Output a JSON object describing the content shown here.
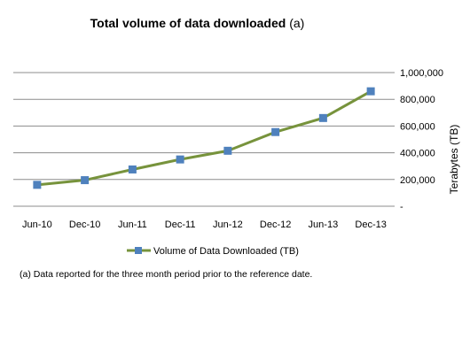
{
  "chart_data": {
    "type": "line",
    "title": "Total volume of data downloaded",
    "title_note": "(a)",
    "categories": [
      "Jun-10",
      "Dec-10",
      "Jun-11",
      "Dec-11",
      "Jun-12",
      "Dec-12",
      "Jun-13",
      "Dec-13"
    ],
    "series": [
      {
        "name": "Volume of Data Downloaded (TB)",
        "values": [
          160000,
          195000,
          275000,
          350000,
          415000,
          555000,
          660000,
          860000
        ],
        "color": "#77933C",
        "marker_color": "#4F81BD"
      }
    ],
    "ylabel": "Terabytes (TB)",
    "ylim": [
      0,
      1000000
    ],
    "y_ticks": [
      "-",
      "200,000",
      "400,000",
      "600,000",
      "800,000",
      "1,000,000"
    ],
    "y_tick_values": [
      0,
      200000,
      400000,
      600000,
      800000,
      1000000
    ],
    "grid": true,
    "y_axis_position": "right",
    "legend_position": "bottom"
  },
  "footnote": "(a) Data reported for the three month period prior to the reference date."
}
